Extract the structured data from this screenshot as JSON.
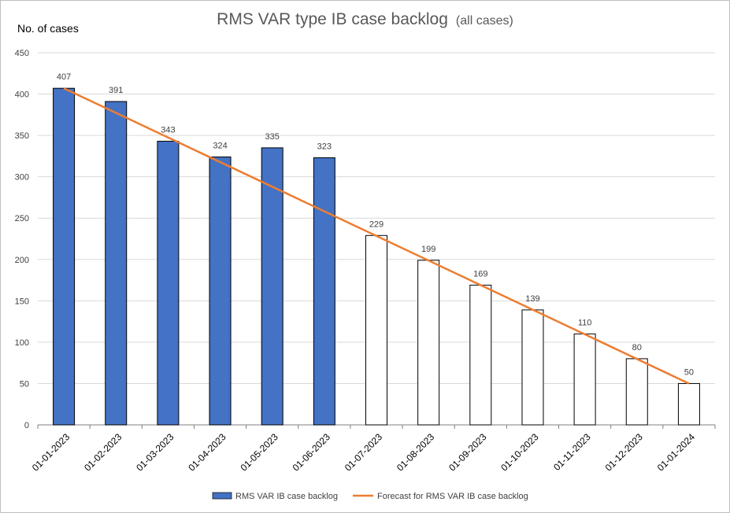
{
  "chart_data": {
    "type": "bar",
    "title": "RMS VAR type IB case backlog",
    "subtitle": "(all cases)",
    "ylabel": "No. of cases",
    "xlabel": "",
    "ylim": [
      0,
      450
    ],
    "yticks": [
      0,
      50,
      100,
      150,
      200,
      250,
      300,
      350,
      400,
      450
    ],
    "categories": [
      "01-01-2023",
      "01-02-2023",
      "01-03-2023",
      "01-04-2023",
      "01-05-2023",
      "01-06-2023",
      "01-07-2023",
      "01-08-2023",
      "01-09-2023",
      "01-10-2023",
      "01-11-2023",
      "01-12-2023",
      "01-01-2024"
    ],
    "values": [
      407,
      391,
      343,
      324,
      335,
      323,
      229,
      199,
      169,
      139,
      110,
      80,
      50
    ],
    "actual_count": 6,
    "series": [
      {
        "name": "RMS VAR IB case backlog",
        "type": "bar",
        "color": "#4472c4",
        "values": [
          407,
          391,
          343,
          324,
          335,
          323,
          null,
          null,
          null,
          null,
          null,
          null,
          null
        ]
      },
      {
        "name": "Forecast for RMS VAR IB case backlog",
        "type": "line",
        "color": "#ed7d31",
        "values": [
          407,
          null,
          null,
          null,
          null,
          null,
          null,
          null,
          null,
          null,
          null,
          null,
          50
        ]
      }
    ],
    "forecast_bar_fill": "#ffffff",
    "grid": true,
    "legend_position": "bottom"
  }
}
